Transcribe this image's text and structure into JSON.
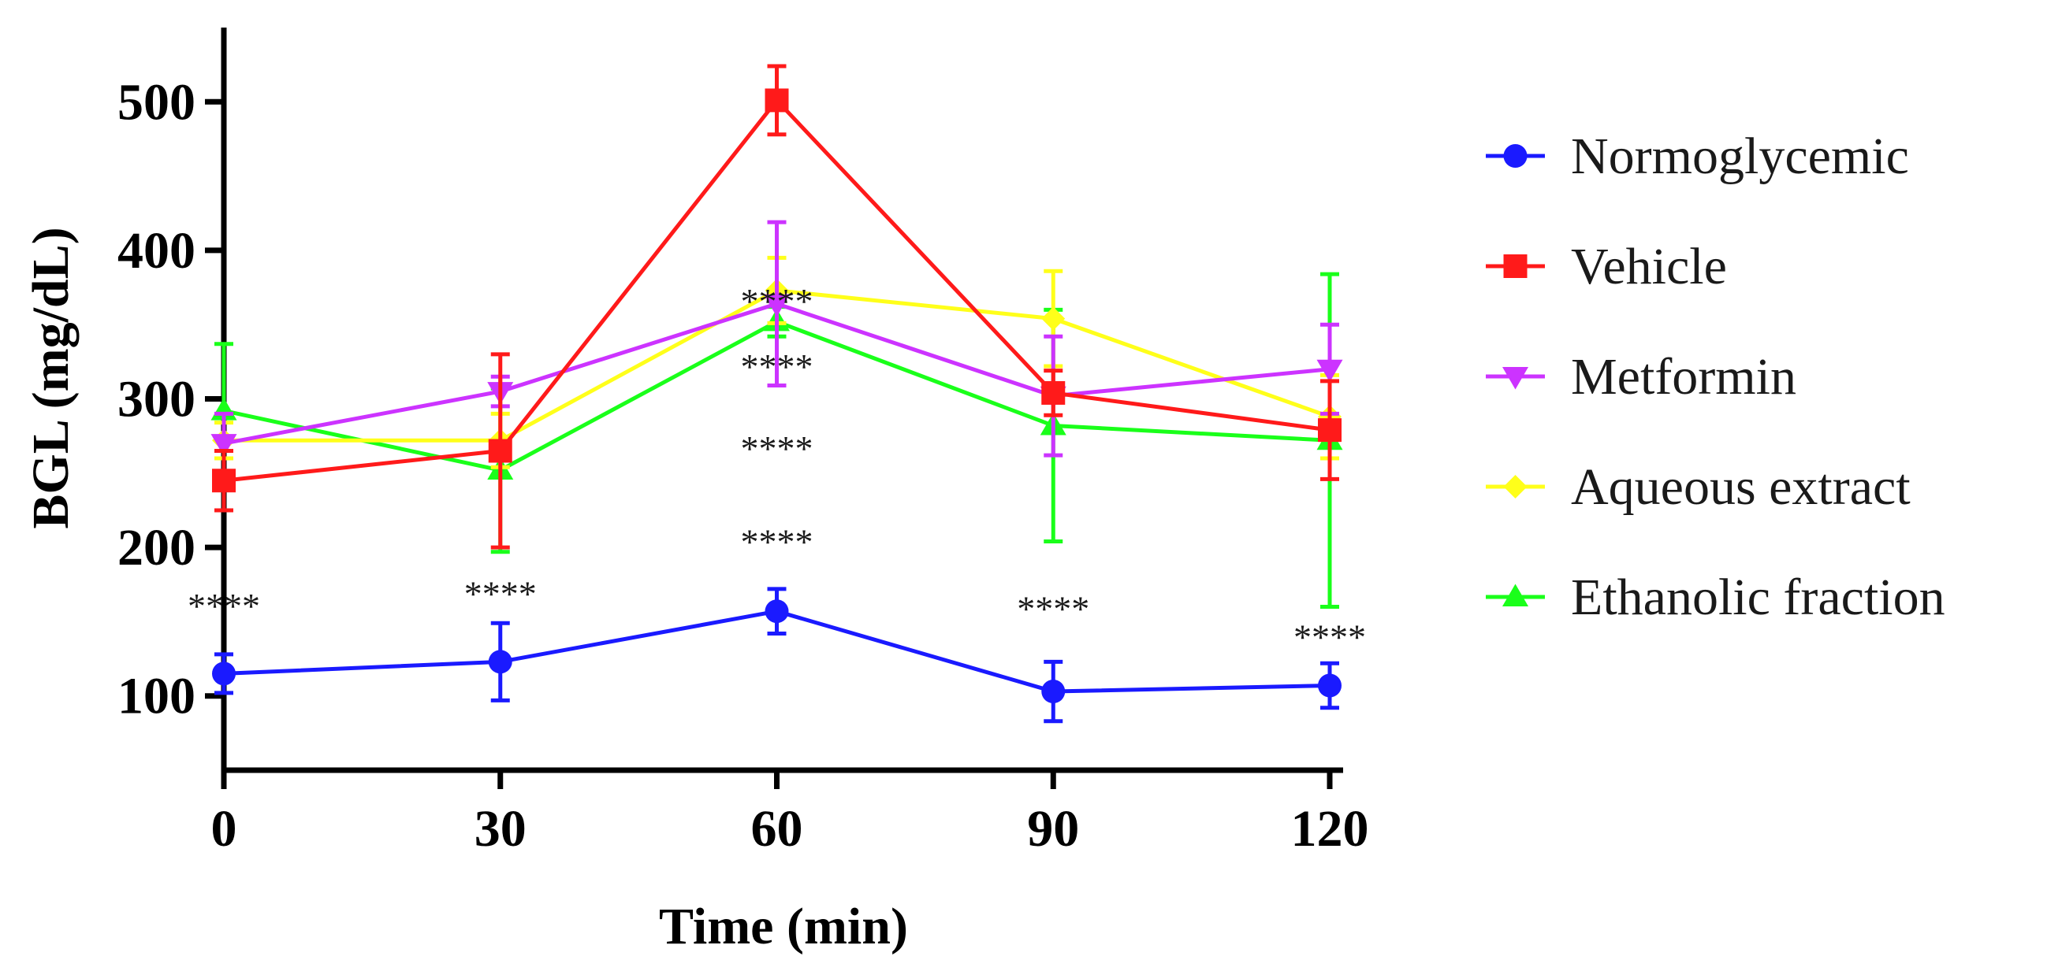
{
  "chart_data": {
    "type": "line",
    "title": "",
    "xlabel": "Time (min)",
    "ylabel": "BGL (mg/dL)",
    "x": [
      0,
      30,
      60,
      90,
      120
    ],
    "xlim": [
      0,
      120
    ],
    "ylim": [
      50,
      550
    ],
    "xticks": [
      "0",
      "30",
      "60",
      "90",
      "120"
    ],
    "yticks": [
      "100",
      "200",
      "300",
      "400",
      "500"
    ],
    "grid": false,
    "legend_position": "right",
    "series": [
      {
        "name": "Normoglycemic",
        "color": "#1a1aff",
        "marker": "circle",
        "values": [
          115,
          123,
          157,
          103,
          107
        ],
        "error": [
          13,
          26,
          15,
          20,
          15
        ]
      },
      {
        "name": "Vehicle",
        "color": "#ff1a1a",
        "marker": "square",
        "values": [
          245,
          265,
          501,
          304,
          279
        ],
        "error": [
          20,
          65,
          23,
          15,
          33
        ]
      },
      {
        "name": "Metformin",
        "color": "#cc33ff",
        "marker": "triangle-down",
        "values": [
          270,
          305,
          364,
          302,
          320
        ],
        "error": [
          20,
          10,
          55,
          40,
          30
        ]
      },
      {
        "name": "Aqueous extract",
        "color": "#ffff1a",
        "marker": "diamond",
        "values": [
          272,
          272,
          373,
          354,
          288
        ],
        "error": [
          12,
          18,
          22,
          32,
          28
        ]
      },
      {
        "name": "Ethanolic fraction",
        "color": "#1aff1a",
        "marker": "triangle-up",
        "values": [
          292,
          252,
          352,
          282,
          272
        ],
        "error": [
          45,
          55,
          10,
          78,
          112
        ]
      }
    ],
    "annotations": [
      {
        "text": "****",
        "x": 0,
        "y": 162
      },
      {
        "text": "****",
        "x": 30,
        "y": 170
      },
      {
        "text": "****",
        "x": 60,
        "y": 205
      },
      {
        "text": "****",
        "x": 60,
        "y": 268
      },
      {
        "text": "****",
        "x": 60,
        "y": 323
      },
      {
        "text": "****",
        "x": 60,
        "y": 367
      },
      {
        "text": "****",
        "x": 90,
        "y": 160
      },
      {
        "text": "****",
        "x": 120,
        "y": 141
      }
    ]
  }
}
